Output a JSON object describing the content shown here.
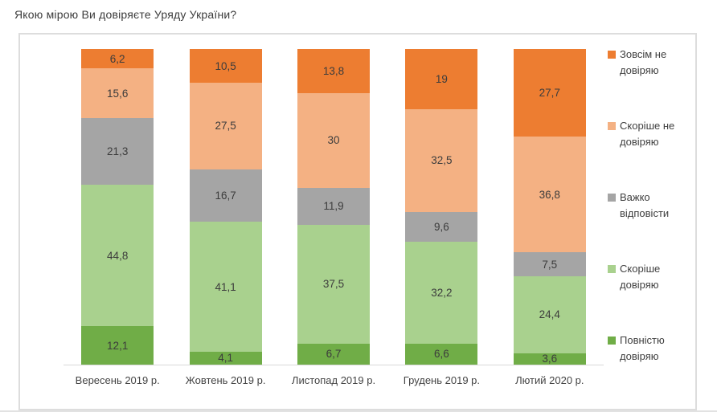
{
  "title": "Якою мірою Ви довіряєте Уряду України?",
  "chart_data": {
    "type": "bar",
    "variant": "stacked-100-column",
    "title": "Якою мірою Ви довіряєте Уряду України?",
    "categories": [
      "Вересень 2019 р.",
      "Жовтень 2019 р.",
      "Листопад 2019 р.",
      "Грудень 2019 р.",
      "Лютий 2020 р."
    ],
    "series": [
      {
        "name": "Повністю довіряю",
        "color": "#70AD47",
        "values": [
          12.1,
          4.1,
          6.7,
          6.6,
          3.6
        ],
        "labels": [
          "12,1",
          "4,1",
          "6,7",
          "6,6",
          "3,6"
        ]
      },
      {
        "name": "Скоріше довіряю",
        "color": "#A9D18E",
        "values": [
          44.8,
          41.1,
          37.5,
          32.2,
          24.4
        ],
        "labels": [
          "44,8",
          "41,1",
          "37,5",
          "32,2",
          "24,4"
        ]
      },
      {
        "name": "Важко відповісти",
        "color": "#A5A5A5",
        "values": [
          21.3,
          16.7,
          11.9,
          9.6,
          7.5
        ],
        "labels": [
          "21,3",
          "16,7",
          "11,9",
          "9,6",
          "7,5"
        ]
      },
      {
        "name": "Скоріше не довіряю",
        "color": "#F4B183",
        "values": [
          15.6,
          27.5,
          30,
          32.5,
          36.8
        ],
        "labels": [
          "15,6",
          "27,5",
          "30",
          "32,5",
          "36,8"
        ]
      },
      {
        "name": "Зовсім не довіряю",
        "color": "#ED7D31",
        "values": [
          6.2,
          10.5,
          13.8,
          19,
          27.7
        ],
        "labels": [
          "6,2",
          "10,5",
          "13,8",
          "19",
          "27,7"
        ]
      }
    ],
    "legend": {
      "position": "right",
      "order_top_to_bottom": [
        "Зовсім не довіряю",
        "Скоріше не довіряю",
        "Важко відповісти",
        "Скоріше довіряю",
        "Повністю довіряю"
      ]
    },
    "xlabel": "",
    "ylabel": "",
    "ylim": [
      0,
      100
    ],
    "grid": false,
    "colors": {
      "data_label": "#3C3C3C",
      "axis_line": "#D9D9D9",
      "card_border": "#DDDDDD",
      "title_text": "#3B3B3B"
    }
  }
}
